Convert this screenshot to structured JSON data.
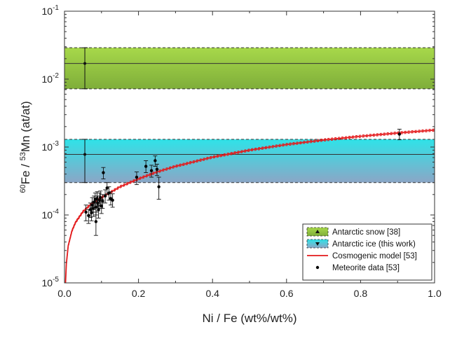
{
  "chart_data": {
    "type": "scatter",
    "xlabel": "Ni / Fe (wt%/wt%)",
    "ylabel": {
      "sup_a": "60",
      "part_a": "Fe / ",
      "sup_b": "53",
      "part_b": "Mn (at/at)"
    },
    "xlim": [
      0.0,
      1.0
    ],
    "ylim": [
      1e-05,
      0.1
    ],
    "yscale": "log",
    "x_ticks": [
      {
        "value": 0.0,
        "label": "0.0"
      },
      {
        "value": 0.2,
        "label": "0.2"
      },
      {
        "value": 0.4,
        "label": "0.4"
      },
      {
        "value": 0.6,
        "label": "0.6"
      },
      {
        "value": 0.8,
        "label": "0.8"
      },
      {
        "value": 1.0,
        "label": "1.0"
      }
    ],
    "y_ticks": [
      {
        "value": 1e-05,
        "base": "10",
        "exp": "-5"
      },
      {
        "value": 0.0001,
        "base": "10",
        "exp": "-4"
      },
      {
        "value": 0.001,
        "base": "10",
        "exp": "-3"
      },
      {
        "value": 0.01,
        "base": "10",
        "exp": "-2"
      },
      {
        "value": 0.1,
        "base": "10",
        "exp": "-1"
      }
    ],
    "grid": false,
    "legend_position": "bottom-right",
    "bands": [
      {
        "name": "Antarctic snow [38]",
        "center": 0.017,
        "lower": 0.0072,
        "upper": 0.029,
        "color": "#9acd32",
        "point": {
          "x": 0.055,
          "y": 0.017,
          "ylow": 0.0072,
          "yhigh": 0.029
        }
      },
      {
        "name": "Antarctic ice (this work)",
        "center": 0.00078,
        "lower": 0.0003,
        "upper": 0.0013,
        "color": "#22d6df",
        "point": {
          "x": 0.055,
          "y": 0.00078,
          "ylow": 0.0003,
          "yhigh": 0.0013
        }
      }
    ],
    "model": {
      "name": "Cosmogenic model [53]",
      "color": "#e31a1c",
      "x": [
        0.002,
        0.005,
        0.01,
        0.02,
        0.03,
        0.05,
        0.07,
        0.1,
        0.15,
        0.2,
        0.25,
        0.3,
        0.4,
        0.5,
        0.6,
        0.7,
        0.8,
        0.9,
        1.0
      ],
      "y": [
        8e-06,
        1.9e-05,
        3.5e-05,
        5.8e-05,
        7.8e-05,
        0.000112,
        0.000142,
        0.00018,
        0.00026,
        0.00034,
        0.00043,
        0.00052,
        0.00071,
        0.0009,
        0.00109,
        0.00127,
        0.00144,
        0.00161,
        0.00178
      ]
    },
    "series": [
      {
        "name": "Meteorite data [53]",
        "color": "#000000",
        "points": [
          {
            "x": 0.058,
            "y": 0.00011,
            "ylow": 8.2e-05,
            "yhigh": 0.00014
          },
          {
            "x": 0.065,
            "y": 9.8e-05,
            "ylow": 7.5e-05,
            "yhigh": 0.00012
          },
          {
            "x": 0.07,
            "y": 0.00012,
            "ylow": 9.2e-05,
            "yhigh": 0.00015
          },
          {
            "x": 0.073,
            "y": 0.000108,
            "ylow": 8.2e-05,
            "yhigh": 0.00013
          },
          {
            "x": 0.075,
            "y": 0.00014,
            "ylow": 0.00011,
            "yhigh": 0.00018
          },
          {
            "x": 0.078,
            "y": 0.000125,
            "ylow": 9.5e-05,
            "yhigh": 0.000155
          },
          {
            "x": 0.08,
            "y": 0.000155,
            "ylow": 0.00012,
            "yhigh": 0.00019
          },
          {
            "x": 0.083,
            "y": 0.00017,
            "ylow": 0.00013,
            "yhigh": 0.00021
          },
          {
            "x": 0.085,
            "y": 0.00013,
            "ylow": 0.0001,
            "yhigh": 0.000165
          },
          {
            "x": 0.088,
            "y": 0.000175,
            "ylow": 0.000135,
            "yhigh": 0.00022
          },
          {
            "x": 0.09,
            "y": 0.00015,
            "ylow": 0.000115,
            "yhigh": 0.00019
          },
          {
            "x": 0.092,
            "y": 0.00012,
            "ylow": 9e-05,
            "yhigh": 0.000155
          },
          {
            "x": 0.095,
            "y": 0.000165,
            "ylow": 0.000125,
            "yhigh": 0.00021
          },
          {
            "x": 0.097,
            "y": 0.00018,
            "ylow": 0.000138,
            "yhigh": 0.000225
          },
          {
            "x": 0.1,
            "y": 0.000135,
            "ylow": 0.000105,
            "yhigh": 0.00017
          },
          {
            "x": 0.103,
            "y": 0.00016,
            "ylow": 0.000125,
            "yhigh": 0.0002
          },
          {
            "x": 0.105,
            "y": 0.00042,
            "ylow": 0.00034,
            "yhigh": 0.0005
          },
          {
            "x": 0.11,
            "y": 0.00019,
            "ylow": 0.00015,
            "yhigh": 0.000235
          },
          {
            "x": 0.115,
            "y": 0.00025,
            "ylow": 0.0002,
            "yhigh": 0.0003
          },
          {
            "x": 0.12,
            "y": 0.00021,
            "ylow": 0.000165,
            "yhigh": 0.00026
          },
          {
            "x": 0.125,
            "y": 0.000175,
            "ylow": 0.00014,
            "yhigh": 0.00022
          },
          {
            "x": 0.13,
            "y": 0.000165,
            "ylow": 0.00013,
            "yhigh": 0.000205
          },
          {
            "x": 0.085,
            "y": 8e-05,
            "ylow": 5e-05,
            "yhigh": 0.00011
          },
          {
            "x": 0.195,
            "y": 0.00036,
            "ylow": 0.00028,
            "yhigh": 0.00043
          },
          {
            "x": 0.22,
            "y": 0.00052,
            "ylow": 0.00042,
            "yhigh": 0.00063
          },
          {
            "x": 0.235,
            "y": 0.00045,
            "ylow": 0.00036,
            "yhigh": 0.00054
          },
          {
            "x": 0.245,
            "y": 0.00063,
            "ylow": 0.00052,
            "yhigh": 0.00074
          },
          {
            "x": 0.25,
            "y": 0.00047,
            "ylow": 0.00038,
            "yhigh": 0.00056
          },
          {
            "x": 0.255,
            "y": 0.00026,
            "ylow": 0.00017,
            "yhigh": 0.00036
          },
          {
            "x": 0.905,
            "y": 0.00155,
            "ylow": 0.00128,
            "yhigh": 0.00183
          }
        ]
      }
    ],
    "legend": [
      {
        "label": "Antarctic snow [38]",
        "kind": "band",
        "color": "#9acd32",
        "marker": "triangle-up"
      },
      {
        "label": "Antarctic ice (this work)",
        "kind": "band",
        "color": "#22d6df",
        "marker": "triangle-down"
      },
      {
        "label": "Cosmogenic model [53]",
        "kind": "line",
        "color": "#e31a1c"
      },
      {
        "label": "Meteorite data [53]",
        "kind": "dot",
        "color": "#000000"
      }
    ]
  }
}
